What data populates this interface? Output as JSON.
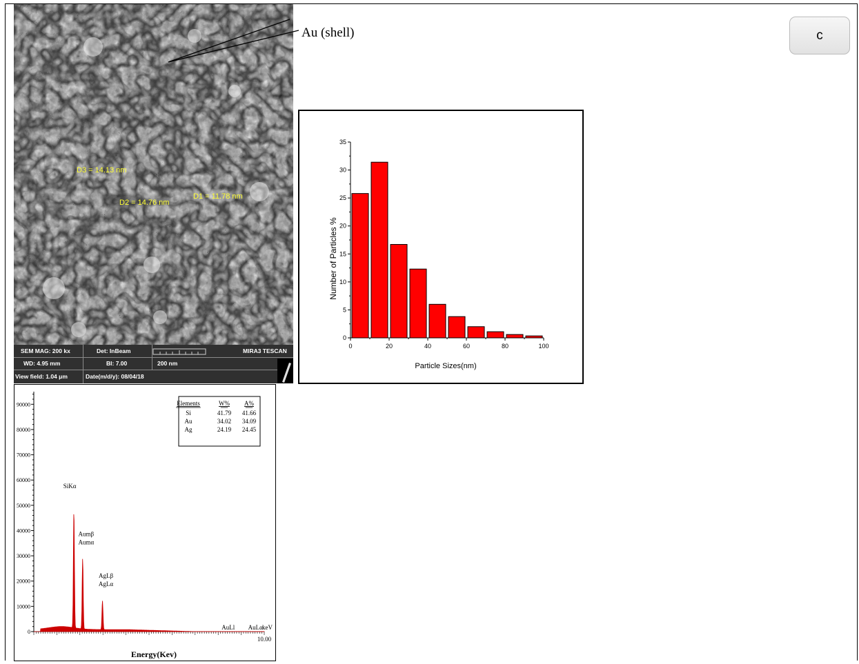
{
  "page": {
    "shell_label": "Au (shell)",
    "panel_letter": "c"
  },
  "sem": {
    "measurements": [
      {
        "label": "D3 = 14.13 nm"
      },
      {
        "label": "D2 = 14.76 nm"
      },
      {
        "label": "D1 = 11.78 nm"
      }
    ],
    "info": {
      "mag": "SEM MAG: 200 kx",
      "det": "Det: InBeam",
      "brand": "MIRA3 TESCAN",
      "wd": "WD: 4.95 mm",
      "bi": "BI: 7.00",
      "scale": "200 nm",
      "view": "View field: 1.04 μm",
      "date": "Date(m/d/y): 08/04/18"
    }
  },
  "chart_data": [
    {
      "type": "bar",
      "title": "",
      "xlabel": "Particle Sizes(nm)",
      "ylabel": "Number of Particles %",
      "xlim": [
        0,
        100
      ],
      "ylim": [
        0,
        35
      ],
      "xticks": [
        "0",
        "20",
        "40",
        "60",
        "80",
        "100"
      ],
      "yticks": [
        "0",
        "5",
        "10",
        "15",
        "20",
        "25",
        "30",
        "35"
      ],
      "bin_width": 10,
      "categories": [
        0,
        10,
        20,
        30,
        40,
        50,
        60,
        70,
        80,
        90
      ],
      "values": [
        25.8,
        31.4,
        16.7,
        12.3,
        6.0,
        3.8,
        2.0,
        1.1,
        0.6,
        0.35
      ],
      "bar_color": "#ff0000",
      "grid": false,
      "legend": "none"
    },
    {
      "type": "line",
      "title": "",
      "xlabel": "Energy(Kev)",
      "ylabel": "",
      "xlim": [
        0,
        10
      ],
      "ylim": [
        0,
        95000
      ],
      "yticks": [
        "0",
        "10000",
        "20000",
        "30000",
        "40000",
        "50000",
        "60000",
        "70000",
        "80000",
        "90000"
      ],
      "xtick_label": "10.00",
      "x_unit": "keV",
      "line_color": "#cc0000",
      "peaks": [
        {
          "x": 1.74,
          "y": 47000,
          "label": "SiKα"
        },
        {
          "x": 2.12,
          "y": 28000,
          "label": "Aumβ"
        },
        {
          "x": 2.12,
          "y": 28000,
          "label": "Aumα"
        },
        {
          "x": 2.98,
          "y": 11500,
          "label": "AgLβ"
        },
        {
          "x": 2.98,
          "y": 11500,
          "label": "AgLα"
        }
      ],
      "line_markers": [
        "AuLl",
        "AuLα"
      ],
      "composition_table": {
        "headers": [
          "Elements",
          "W%",
          "A%"
        ],
        "rows": [
          [
            "Si",
            "41.79",
            "41.66"
          ],
          [
            "Au",
            "34.02",
            "34.09"
          ],
          [
            "Ag",
            "24.19",
            "24.45"
          ]
        ]
      }
    }
  ]
}
